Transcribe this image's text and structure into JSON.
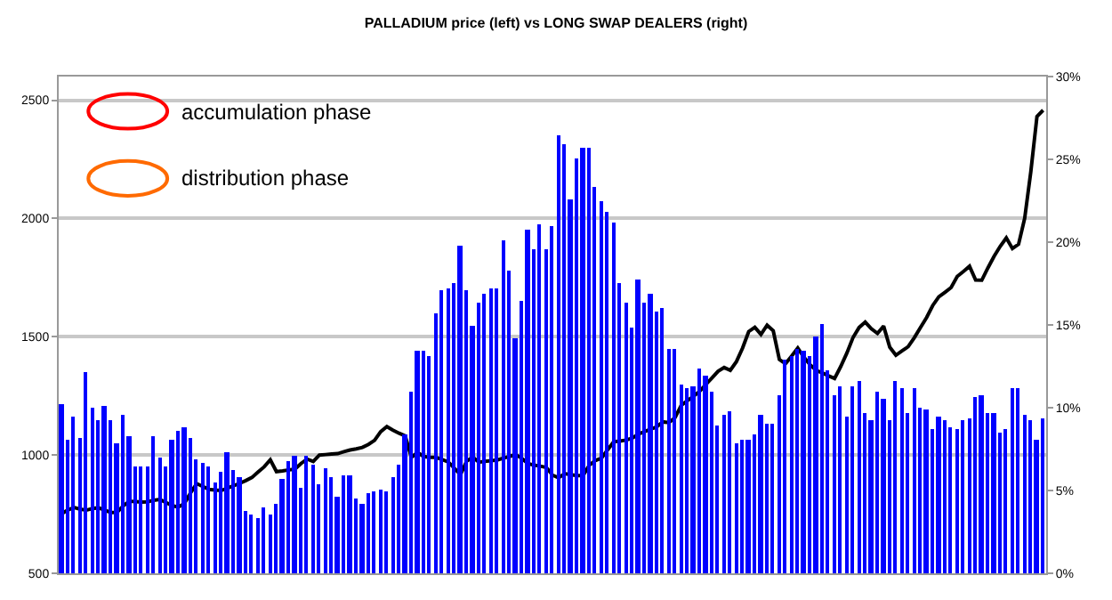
{
  "chart_data": {
    "type": "bar",
    "title": "PALLADIUM price (left) vs LONG SWAP DEALERS (right)",
    "categories": [
      null,
      null,
      null,
      null,
      null,
      null,
      null,
      null,
      null,
      null,
      null,
      null,
      null,
      null,
      null,
      null,
      null,
      null,
      null,
      null,
      null,
      null,
      null,
      null,
      null,
      null,
      null,
      null,
      null,
      null,
      null,
      null,
      null,
      null,
      null,
      null,
      null,
      null,
      null,
      null,
      null,
      null,
      null,
      null,
      null,
      null,
      null,
      null,
      null,
      null,
      null,
      null,
      null,
      null,
      null,
      null,
      null,
      null,
      null,
      null,
      null,
      null,
      null,
      null,
      null,
      null,
      null,
      null,
      null,
      null,
      null,
      null,
      null,
      null,
      null,
      null,
      null,
      null,
      null,
      null,
      null,
      null,
      null,
      null,
      null,
      null,
      null,
      null,
      null,
      null,
      null,
      null,
      null,
      null,
      null,
      null,
      null,
      null,
      null,
      null,
      null,
      null,
      null,
      null,
      null,
      null,
      null,
      null,
      null,
      null,
      null,
      null,
      null,
      null,
      null,
      null,
      null,
      null,
      null,
      null,
      null,
      null,
      null,
      null,
      null,
      null,
      null,
      null,
      null,
      null,
      null,
      null,
      null,
      null,
      null,
      null,
      null,
      null,
      null,
      null,
      null,
      null,
      null,
      null,
      null,
      null,
      null,
      null,
      null,
      null,
      null,
      null,
      null,
      null,
      null,
      null,
      null,
      null,
      null,
      null,
      null
    ],
    "series": [
      {
        "axis": "y2",
        "color": "#0000ff",
        "values": [
          10.2,
          8.1,
          9.5,
          8.2,
          12.1,
          10.0,
          9.2,
          10.1,
          9.3,
          7.8,
          9.6,
          8.3,
          6.4,
          6.5,
          6.5,
          8.3,
          7.0,
          6.4,
          8.1,
          8.6,
          8.8,
          8.2,
          6.9,
          6.7,
          6.4,
          5.5,
          6.1,
          7.3,
          6.2,
          5.8,
          3.8,
          3.5,
          3.3,
          4.0,
          3.6,
          4.2,
          5.7,
          6.8,
          7.1,
          5.2,
          7.1,
          6.6,
          5.4,
          6.3,
          5.8,
          4.6,
          5.9,
          5.9,
          4.5,
          4.2,
          4.8,
          4.9,
          5.1,
          5.0,
          5.8,
          6.6,
          8.4,
          11.0,
          13.4,
          13.4,
          13.1,
          15.7,
          17.1,
          17.2,
          17.5,
          19.8,
          17.1,
          15.0,
          16.3,
          16.9,
          17.2,
          17.2,
          20.1,
          18.3,
          14.2,
          16.5,
          20.7,
          19.6,
          21.1,
          19.6,
          21.0,
          26.5,
          25.9,
          22.6,
          25.1,
          25.7,
          25.7,
          23.3,
          22.5,
          21.8,
          21.2,
          17.5,
          16.3,
          14.8,
          17.7,
          16.3,
          16.9,
          15.8,
          16.0,
          13.6,
          13.6,
          11.4,
          11.2,
          11.3,
          12.4,
          11.9,
          11.0,
          8.9,
          9.6,
          9.8,
          7.8,
          8.1,
          8.1,
          8.4,
          9.6,
          9.0,
          9.0,
          10.8,
          12.9,
          13.1,
          13.6,
          13.4,
          13.1,
          14.3,
          15.1,
          12.3,
          10.8,
          11.3,
          9.5,
          11.3,
          11.6,
          9.7,
          9.3,
          11.0,
          10.5,
          9.3,
          11.6,
          11.2,
          9.7,
          11.2,
          10.0,
          9.9,
          8.7,
          9.5,
          9.3,
          8.8,
          8.7,
          9.3,
          9.4,
          10.6,
          10.8,
          9.7,
          9.7,
          8.5,
          8.7,
          11.2,
          11.2,
          9.6,
          9.3,
          8.1,
          9.4
        ]
      },
      {
        "type": "line",
        "axis": "y",
        "color": "#000000",
        "values": [
          752,
          768,
          778,
          771,
          767,
          774,
          777,
          767,
          757,
          758,
          784,
          805,
          803,
          801,
          802,
          809,
          812,
          799,
          786,
          780,
          795,
          840,
          879,
          867,
          855,
          852,
          850,
          860,
          870,
          880,
          892,
          905,
          928,
          950,
          980,
          930,
          933,
          937,
          940,
          964,
          983,
          973,
          1000,
          1002,
          1004,
          1006,
          1014,
          1021,
          1026,
          1032,
          1045,
          1062,
          1099,
          1120,
          1105,
          1092,
          1081,
          990,
          1011,
          994,
          990,
          990,
          981,
          971,
          945,
          916,
          974,
          991,
          970,
          973,
          976,
          979,
          987,
          994,
          1002,
          986,
          964,
          957,
          953,
          948,
          915,
          904,
          921,
          917,
          913,
          913,
          957,
          977,
          987,
          1022,
          1056,
          1059,
          1063,
          1071,
          1088,
          1099,
          1109,
          1119,
          1140,
          1137,
          1159,
          1210,
          1230,
          1248,
          1269,
          1298,
          1326,
          1354,
          1370,
          1358,
          1395,
          1452,
          1522,
          1540,
          1510,
          1549,
          1525,
          1404,
          1386,
          1418,
          1452,
          1413,
          1382,
          1358,
          1347,
          1335,
          1324,
          1374,
          1431,
          1496,
          1539,
          1562,
          1534,
          1514,
          1545,
          1456,
          1422,
          1440,
          1458,
          1496,
          1539,
          1581,
          1632,
          1669,
          1688,
          1708,
          1755,
          1776,
          1798,
          1740,
          1739,
          1791,
          1840,
          1882,
          1918,
          1873,
          1891,
          2001,
          2198,
          2431,
          2458
        ]
      }
    ],
    "ylim": [
      500,
      2600
    ],
    "yticks": [
      500,
      1000,
      1500,
      2000,
      2500
    ],
    "y2lim": [
      0,
      30
    ],
    "y2ticks": [
      {
        "value": 0,
        "label": "0%"
      },
      {
        "value": 5,
        "label": "5%"
      },
      {
        "value": 10,
        "label": "10%"
      },
      {
        "value": 15,
        "label": "15%"
      },
      {
        "value": 20,
        "label": "20%"
      },
      {
        "value": 25,
        "label": "25%"
      },
      {
        "value": 30,
        "label": "30%"
      }
    ],
    "tick_labels": "y",
    "grid": "y",
    "legend": false,
    "annotations": [
      "accumulation phase",
      "distribution phase"
    ]
  }
}
